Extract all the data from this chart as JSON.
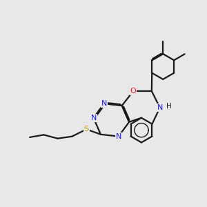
{
  "background_color": "#e8e8e8",
  "bond_color": "#1a1a1a",
  "atom_colors": {
    "N": "#1414ff",
    "O": "#ff1414",
    "S": "#c8a000",
    "H": "#1a1a1a",
    "C": "#1a1a1a"
  },
  "lw": 1.6,
  "dbl_off": 0.055
}
